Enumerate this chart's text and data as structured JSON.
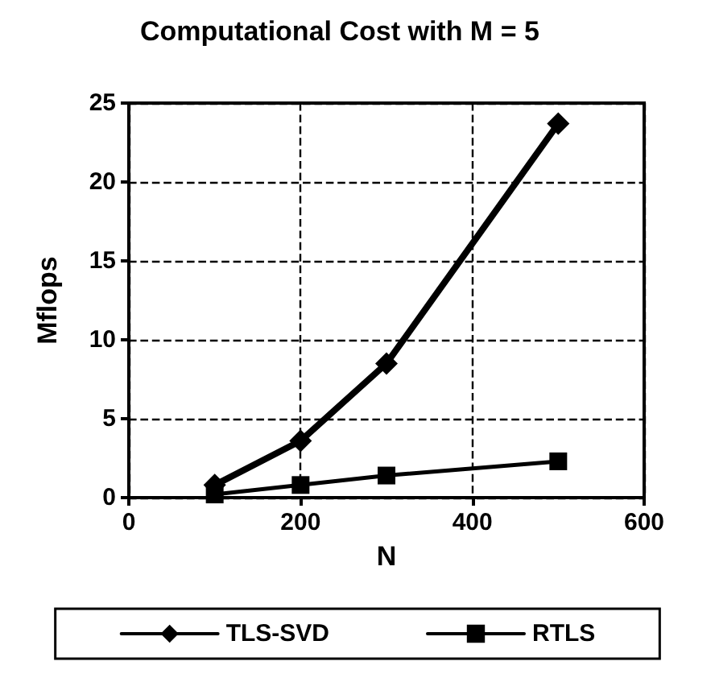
{
  "chart_data": {
    "type": "line",
    "title": "Computational Cost with M = 5",
    "xlabel": "N",
    "ylabel": "Mflops",
    "x": [
      100,
      200,
      300,
      500
    ],
    "series": [
      {
        "name": "TLS-SVD",
        "color": "#000000",
        "values": [
          0.8,
          3.6,
          8.5,
          23.7
        ],
        "marker": "diamond"
      },
      {
        "name": "RTLS",
        "color": "#000000",
        "values": [
          0.2,
          0.8,
          1.4,
          2.3
        ],
        "marker": "square"
      }
    ],
    "xlim": [
      0,
      600
    ],
    "xticks": [
      0,
      200,
      400,
      600
    ],
    "ylim": [
      0,
      25
    ],
    "yticks": [
      0,
      5,
      10,
      15,
      20,
      25
    ],
    "grid": true,
    "line_style": "solid",
    "legend": "bottom"
  }
}
